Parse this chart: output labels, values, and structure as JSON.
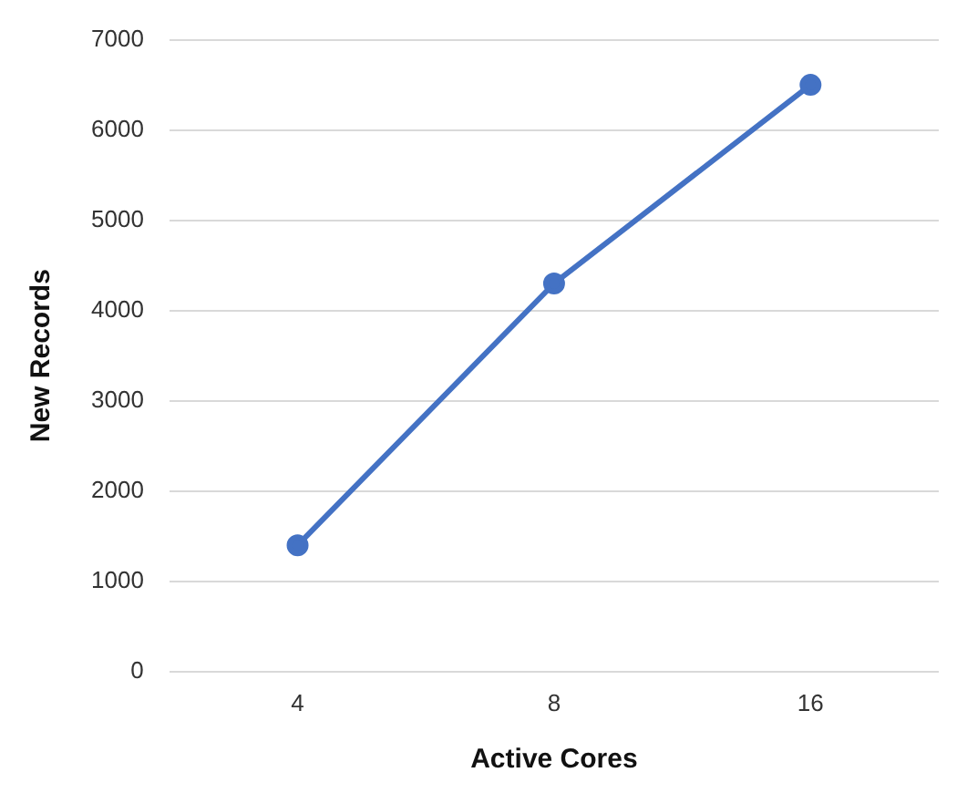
{
  "chart_data": {
    "type": "line",
    "xlabel": "Active Cores",
    "ylabel": "New Records",
    "categories": [
      "4",
      "8",
      "16"
    ],
    "series": [
      {
        "color": "#4472c4",
        "values": [
          1400,
          4300,
          6500
        ]
      }
    ],
    "ylim": [
      0,
      7000
    ],
    "yticks": [
      0,
      1000,
      2000,
      3000,
      4000,
      5000,
      6000,
      7000
    ],
    "grid": "y",
    "marker": "circle",
    "line_style": "solid",
    "legend": false
  }
}
